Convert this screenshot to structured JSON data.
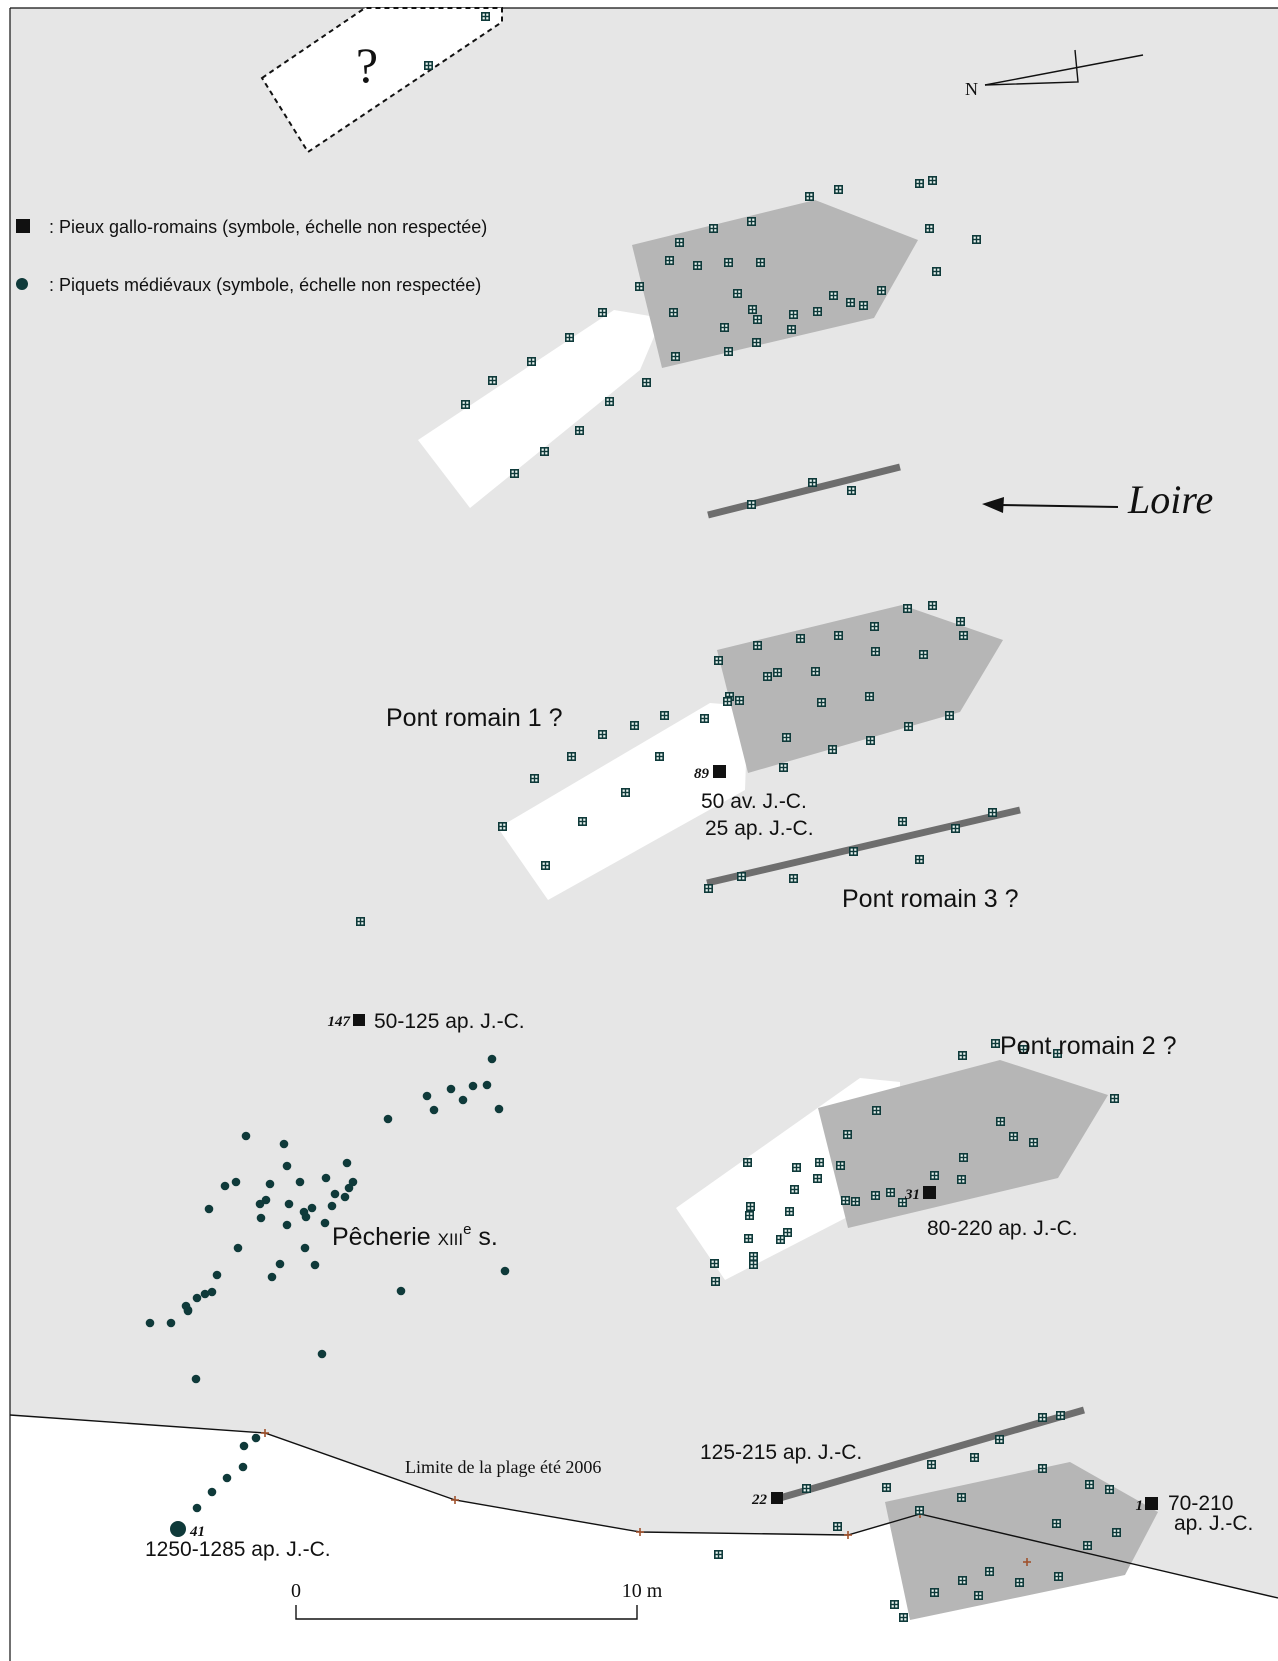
{
  "colors": {
    "background": "#e6e6e6",
    "beach": "#ffffff",
    "structure_grey": "#b6b6b6",
    "bar_grey": "#6e6e6e",
    "stake_dark": "#0f3a3a",
    "cross": "#a0522d"
  },
  "legend": {
    "roman_piles": ": Pieux gallo-romains (symbole, échelle non respectée)",
    "medieval_stakes": ": Piquets médiévaux (symbole, échelle non respectée)"
  },
  "north": {
    "label": "N"
  },
  "river": {
    "label": "Loire"
  },
  "unknown_zone": {
    "label": "?"
  },
  "structures": {
    "pont1": "Pont romain 1 ?",
    "pont2": "Pont romain 2 ?",
    "pont3": "Pont romain 3 ?",
    "pecherie_main": "Pêcherie ",
    "pecherie_century": "XIII",
    "pecherie_sup": "e",
    "pecherie_end": " s."
  },
  "samples": {
    "s89": {
      "id": "89",
      "date_line1": "50 av. J.-C.",
      "date_line2": "25 ap. J.-C."
    },
    "s147": {
      "id": "147",
      "date": "50-125 ap. J.-C."
    },
    "s31": {
      "id": "31",
      "date": "80-220 ap. J.-C."
    },
    "s22": {
      "id": "22",
      "date": "125-215 ap. J.-C."
    },
    "s1": {
      "id": "1",
      "date_line1": "70-210",
      "date_line2": "ap. J.-C."
    },
    "s41": {
      "id": "41",
      "date": "1250-1285 ap. J.-C."
    }
  },
  "beach_limit": {
    "label": "Limite  de la plage été 2006"
  },
  "scale_bar": {
    "start_label": "0",
    "end_label": "10 m"
  }
}
